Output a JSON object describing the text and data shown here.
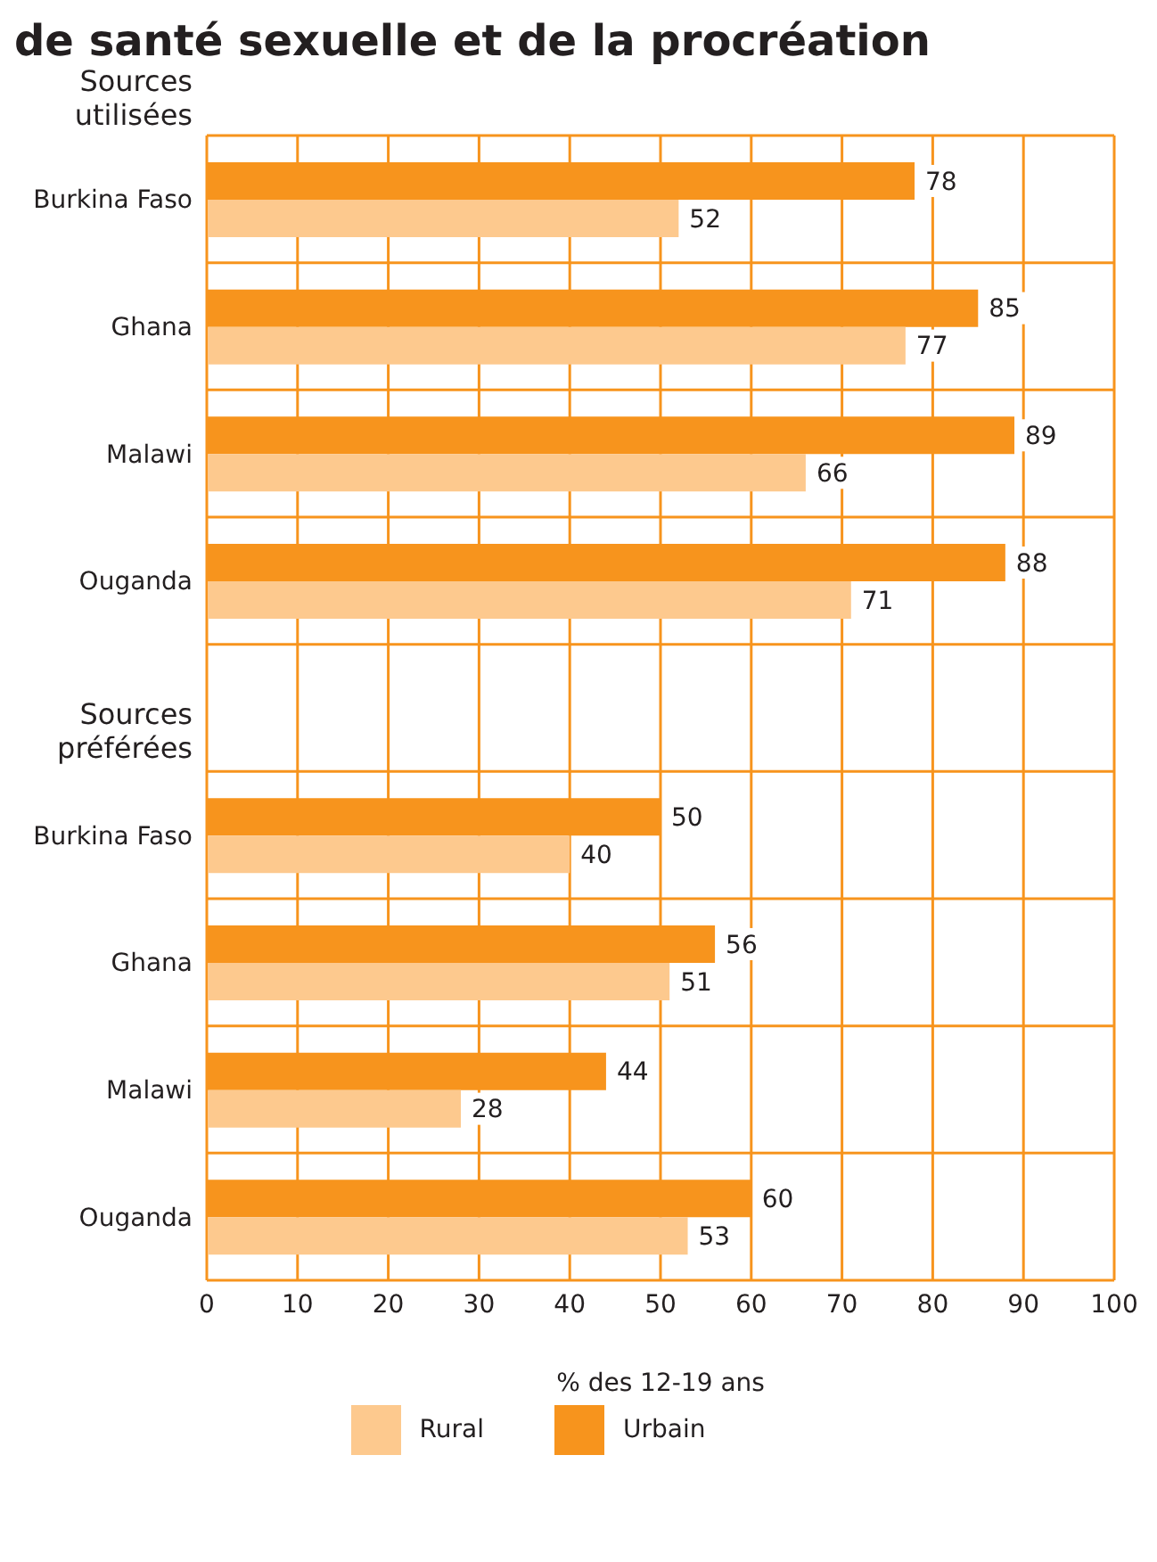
{
  "chart_data": {
    "type": "bar",
    "orientation": "horizontal",
    "title": "de santé sexuelle et de la procréation",
    "categories": [
      "Burkina Faso",
      "Ghana",
      "Malawi",
      "Ouganda",
      null,
      "Burkina Faso",
      "Ghana",
      "Malawi",
      "Ouganda"
    ],
    "series": [
      {
        "name": "Urbain",
        "color": "#f7941d",
        "values": [
          78,
          85,
          89,
          88,
          null,
          50,
          56,
          44,
          60
        ]
      },
      {
        "name": "Rural",
        "color": "#fdc98e",
        "values": [
          52,
          77,
          66,
          71,
          null,
          40,
          51,
          28,
          53
        ]
      }
    ],
    "xlim": [
      0,
      100
    ],
    "xticks": [
      0,
      10,
      20,
      30,
      40,
      50,
      60,
      70,
      80,
      90,
      100
    ],
    "xlabel": "% des 12-19 ans",
    "annotations": [
      "Sources utilisées",
      "Sources préférées"
    ],
    "data_labels": true,
    "grid": true,
    "legend": "bottom"
  }
}
